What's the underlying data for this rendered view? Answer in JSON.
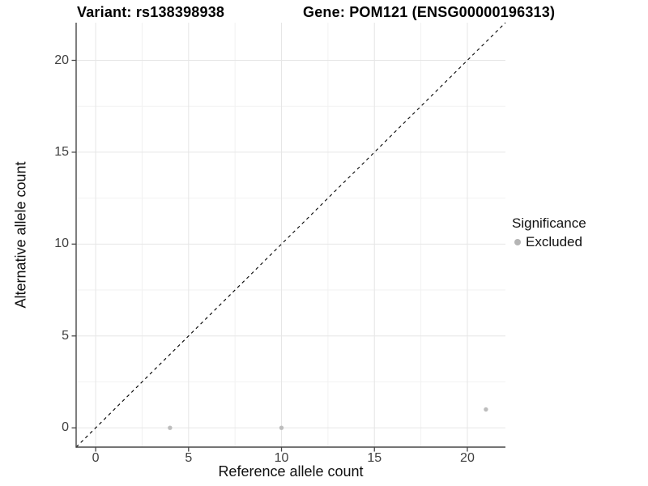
{
  "chart_data": {
    "type": "scatter",
    "titles": {
      "left": "Variant: rs138398938",
      "right": "Gene: POM121 (ENSG00000196313)"
    },
    "xlabel": "Reference allele count",
    "ylabel": "Alternative allele count",
    "xlim": [
      -1.05,
      22.05
    ],
    "ylim": [
      -1.05,
      22.05
    ],
    "x_ticks": [
      0,
      5,
      10,
      15,
      20
    ],
    "y_ticks": [
      0,
      5,
      10,
      15,
      20
    ],
    "minor_gridlines": [
      2.5,
      7.5,
      12.5,
      17.5
    ],
    "grid": "on",
    "identity_line": {
      "equation": "y = x",
      "style": "dashed",
      "color": "#000000"
    },
    "series": [
      {
        "name": "Excluded",
        "color": "#bdbdbd",
        "points": [
          {
            "x": 4,
            "y": 0
          },
          {
            "x": 10,
            "y": 0
          },
          {
            "x": 21,
            "y": 1
          }
        ]
      }
    ],
    "legend": {
      "title": "Significance",
      "position": "right",
      "entries": [
        {
          "label": "Excluded",
          "color": "#b5b5b5"
        }
      ]
    },
    "colors": {
      "grid_major": "#e6e6e6",
      "grid_minor": "#f2f2f2",
      "axis_line": "#474747",
      "tick_mark": "#474747",
      "tick_label": "#404040",
      "point": "#bdbdbd"
    }
  }
}
